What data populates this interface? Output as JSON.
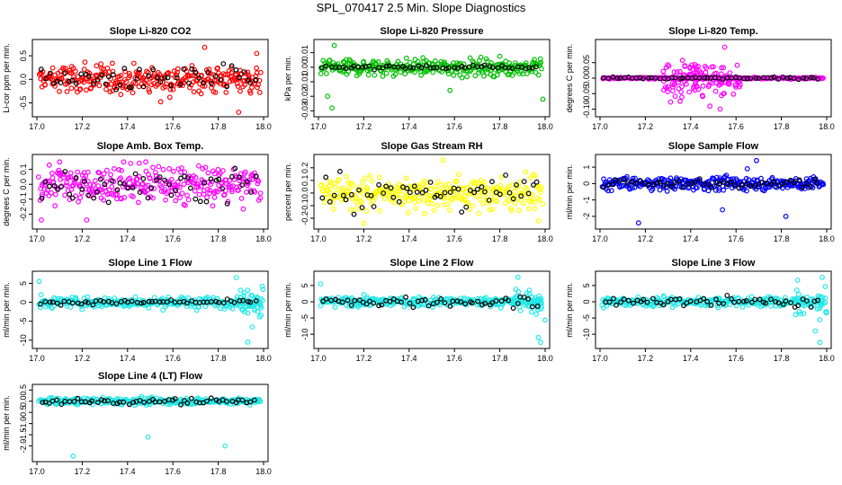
{
  "figure": {
    "title": "SPL_070417  2.5 Min. Slope Diagnostics"
  },
  "chart_data": [
    {
      "type": "scatter",
      "title": "Slope Li-820 CO2",
      "ylabel": "Li-cor ppm per min.",
      "xlabel": "",
      "xlim": [
        17.0,
        18.0
      ],
      "ylim": [
        -0.7,
        0.75
      ],
      "xticks": [
        "17.0",
        "17.2",
        "17.4",
        "17.6",
        "17.8",
        "18.0"
      ],
      "yticks": [
        "-0.5",
        "0.0",
        "0.5"
      ],
      "color": "#ff0000",
      "dense": {
        "center": 0.0,
        "spread": 0.22,
        "count": 300
      },
      "outliers": [
        [
          17.74,
          0.68
        ],
        [
          17.89,
          -0.7
        ],
        [
          17.97,
          0.55
        ]
      ],
      "black_spread": 0.2
    },
    {
      "type": "scatter",
      "title": "Slope Li-820 Pressure",
      "ylabel": "kPa per min.",
      "xlabel": "",
      "xlim": [
        17.0,
        18.0
      ],
      "ylim": [
        -0.031,
        0.016
      ],
      "xticks": [
        "17.0",
        "17.2",
        "17.4",
        "17.6",
        "17.8",
        "18.0"
      ],
      "yticks": [
        "-0.03",
        "-0.02",
        "-0.01",
        "0.00",
        "0.01"
      ],
      "color": "#00c000",
      "dense": {
        "center": 0.0,
        "spread": 0.004,
        "count": 300
      },
      "outliers": [
        [
          17.07,
          0.015
        ],
        [
          17.06,
          -0.028
        ],
        [
          17.04,
          -0.02
        ],
        [
          17.99,
          -0.022
        ],
        [
          17.58,
          -0.016
        ]
      ],
      "black_spread": 0.001
    },
    {
      "type": "scatter",
      "title": "Slope Li-820 Temp.",
      "ylabel": "degrees C per min.",
      "xlabel": "",
      "xlim": [
        17.0,
        18.0
      ],
      "ylim": [
        -0.11,
        0.11
      ],
      "xticks": [
        "17.0",
        "17.2",
        "17.4",
        "17.6",
        "17.8",
        "18.0"
      ],
      "yticks": [
        "-0.10",
        "-0.05",
        "0.00",
        "0.05"
      ],
      "color": "#ff00ff",
      "dense": {
        "center": 0.0,
        "spread": 0.002,
        "count": 220
      },
      "burst": {
        "x0": 17.27,
        "x1": 17.62,
        "spread": 0.04,
        "count": 130
      },
      "outliers": [
        [
          17.53,
          -0.1
        ],
        [
          17.55,
          0.1
        ]
      ],
      "black_spread": 0.002
    },
    {
      "type": "scatter",
      "title": "Slope Amb. Box Temp.",
      "ylabel": "degrees C per min.",
      "xlabel": "",
      "xlim": [
        17.0,
        18.0
      ],
      "ylim": [
        -0.27,
        0.17
      ],
      "xticks": [
        "17.0",
        "17.2",
        "17.4",
        "17.6",
        "17.8",
        "18.0"
      ],
      "yticks": [
        "-0.2",
        "-0.1",
        "0.0",
        "0.1"
      ],
      "color": "#ff00ff",
      "dense": {
        "center": 0.0,
        "spread": 0.09,
        "count": 300
      },
      "outliers": [
        [
          17.02,
          -0.24
        ],
        [
          17.1,
          0.15
        ],
        [
          17.22,
          -0.24
        ],
        [
          17.48,
          0.15
        ]
      ],
      "black_spread": 0.08
    },
    {
      "type": "scatter",
      "title": "Slope Gas Stream RH",
      "ylabel": "percent per min.",
      "xlabel": "",
      "xlim": [
        17.0,
        18.0
      ],
      "ylim": [
        -0.25,
        0.27
      ],
      "xticks": [
        "17.0",
        "17.2",
        "17.4",
        "17.6",
        "17.8",
        "18.0"
      ],
      "yticks": [
        "-0.2",
        "-0.1",
        "0.0",
        "0.1",
        "0.2"
      ],
      "color": "#ffff00",
      "dense": {
        "center": 0.0,
        "spread": 0.09,
        "count": 300
      },
      "outliers": [
        [
          17.55,
          0.26
        ],
        [
          17.2,
          -0.24
        ],
        [
          17.97,
          -0.22
        ]
      ],
      "black_spread": 0.1
    },
    {
      "type": "scatter",
      "title": "Slope Sample Flow",
      "ylabel": "ml/min per min.",
      "xlabel": "",
      "xlim": [
        17.0,
        18.0
      ],
      "ylim": [
        -2.5,
        1.5
      ],
      "xticks": [
        "17.0",
        "17.2",
        "17.4",
        "17.6",
        "17.8",
        "18.0"
      ],
      "yticks": [
        "-2",
        "-1",
        "0",
        "1"
      ],
      "color": "#0000ff",
      "dense": {
        "center": 0.0,
        "spread": 0.28,
        "count": 300
      },
      "outliers": [
        [
          17.17,
          -2.4
        ],
        [
          17.69,
          1.4
        ],
        [
          17.82,
          -2.0
        ],
        [
          17.54,
          -1.6
        ],
        [
          17.65,
          0.9
        ]
      ],
      "black_spread": 0.2
    },
    {
      "type": "scatter",
      "title": "Slope Line 1 Flow",
      "ylabel": "ml/min per min.",
      "xlabel": "",
      "xlim": [
        17.0,
        18.0
      ],
      "ylim": [
        -11,
        7
      ],
      "xticks": [
        "17.0",
        "17.2",
        "17.4",
        "17.6",
        "17.8",
        "18.0"
      ],
      "yticks": [
        "-10",
        "-5",
        "0",
        "5"
      ],
      "color": "#22e8e8",
      "dense": {
        "center": 0.0,
        "spread": 1.0,
        "count": 300
      },
      "burst": {
        "x0": 17.88,
        "x1": 18.0,
        "spread": 3.2,
        "count": 30
      },
      "outliers": [
        [
          17.01,
          5.5
        ],
        [
          17.93,
          -10.5
        ],
        [
          17.95,
          -6.5
        ],
        [
          17.88,
          6.5
        ]
      ],
      "black_spread": 0.4
    },
    {
      "type": "scatter",
      "title": "Slope Line 2 Flow",
      "ylabel": "ml/min per min.",
      "xlabel": "",
      "xlim": [
        17.0,
        18.0
      ],
      "ylim": [
        -13,
        8
      ],
      "xticks": [
        "17.0",
        "17.2",
        "17.4",
        "17.6",
        "17.8",
        "18.0"
      ],
      "yticks": [
        "-10",
        "-5",
        "0",
        "5"
      ],
      "color": "#22e8e8",
      "dense": {
        "center": 0.0,
        "spread": 1.0,
        "count": 300
      },
      "burst": {
        "x0": 17.86,
        "x1": 18.0,
        "spread": 3.5,
        "count": 30
      },
      "outliers": [
        [
          17.01,
          5.5
        ],
        [
          17.98,
          -12.5
        ],
        [
          17.97,
          -11.0
        ],
        [
          17.88,
          7.5
        ]
      ],
      "black_spread": 1.2
    },
    {
      "type": "scatter",
      "title": "Slope Line 3 Flow",
      "ylabel": "ml/min per min.",
      "xlabel": "",
      "xlim": [
        17.0,
        18.0
      ],
      "ylim": [
        -13,
        8
      ],
      "xticks": [
        "17.0",
        "17.2",
        "17.4",
        "17.6",
        "17.8",
        "18.0"
      ],
      "yticks": [
        "-10",
        "-5",
        "0",
        "5"
      ],
      "color": "#22e8e8",
      "dense": {
        "center": 0.0,
        "spread": 1.0,
        "count": 300
      },
      "burst": {
        "x0": 17.86,
        "x1": 18.0,
        "spread": 3.5,
        "count": 30
      },
      "outliers": [
        [
          17.97,
          -12.5
        ],
        [
          17.98,
          7.5
        ],
        [
          17.95,
          -9.0
        ]
      ],
      "black_spread": 1.2
    },
    {
      "type": "scatter",
      "title": "Slope Line 4 (LT) Flow",
      "ylabel": "ml/min per min.",
      "xlabel": "",
      "xlim": [
        17.0,
        18.0
      ],
      "ylim": [
        -2.5,
        0.55
      ],
      "xticks": [
        "17.0",
        "17.2",
        "17.4",
        "17.6",
        "17.8",
        "18.0"
      ],
      "yticks": [
        "-2.0",
        "-1.5",
        "-1.0",
        "-0.5",
        "0.0",
        "0.5"
      ],
      "color": "#22e8e8",
      "dense": {
        "center": 0.0,
        "spread": 0.1,
        "count": 300
      },
      "outliers": [
        [
          17.16,
          -2.45
        ],
        [
          17.49,
          -1.6
        ],
        [
          17.83,
          -2.0
        ]
      ],
      "black_spread": 0.1
    }
  ]
}
